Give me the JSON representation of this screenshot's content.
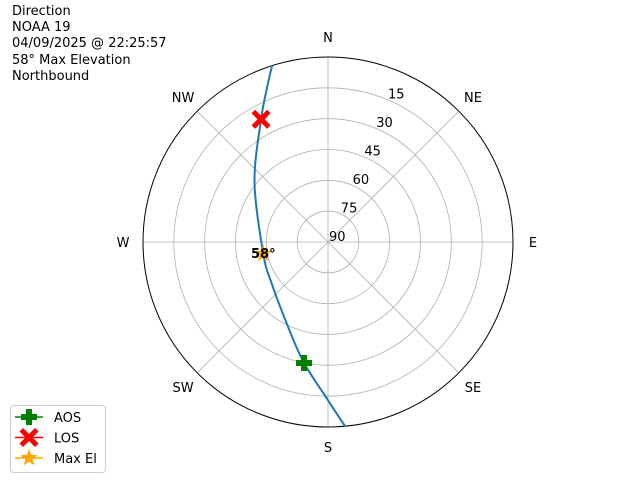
{
  "info": {
    "title": "Direction",
    "satellite": "NOAA 19",
    "datetime": "04/09/2025 @ 22:25:57",
    "max_elevation": "58° Max Elevation",
    "direction": "Northbound"
  },
  "chart_data": {
    "type": "polar-line",
    "theta_zero": "N",
    "theta_direction": "clockwise",
    "radial_axis": "elevation (90 at center, 0 at edge)",
    "angular_ticks": [
      {
        "label": "N",
        "az": 0
      },
      {
        "label": "NE",
        "az": 45
      },
      {
        "label": "E",
        "az": 90
      },
      {
        "label": "SE",
        "az": 135
      },
      {
        "label": "S",
        "az": 180
      },
      {
        "label": "SW",
        "az": 225
      },
      {
        "label": "W",
        "az": 270
      },
      {
        "label": "NW",
        "az": 315
      }
    ],
    "radial_ticks": [
      "15",
      "30",
      "45",
      "60",
      "75",
      "90"
    ],
    "grid": true,
    "track": {
      "color": "#1f77b4",
      "points": [
        {
          "az": 174.7,
          "el": 0
        },
        {
          "az": 180,
          "el": 13
        },
        {
          "az": 191.2,
          "el": 30
        },
        {
          "az": 203.4,
          "el": 43
        },
        {
          "az": 233.8,
          "el": 56
        },
        {
          "az": 259.7,
          "el": 58
        },
        {
          "az": 309,
          "el": 44
        },
        {
          "az": 331.4,
          "el": 22
        },
        {
          "az": 338.1,
          "el": 10
        },
        {
          "az": 342.4,
          "el": 0
        }
      ]
    },
    "markers": [
      {
        "name": "AOS",
        "az": 191.2,
        "el": 30,
        "color": "#008000",
        "shape": "plus"
      },
      {
        "name": "LOS",
        "az": 331.4,
        "el": 22,
        "color": "#ff0000",
        "shape": "x"
      },
      {
        "name": "Max El",
        "az": 259.7,
        "el": 58,
        "color": "#ffa500",
        "shape": "star"
      }
    ],
    "annotation": "58°",
    "legend_position": "lower-left"
  }
}
